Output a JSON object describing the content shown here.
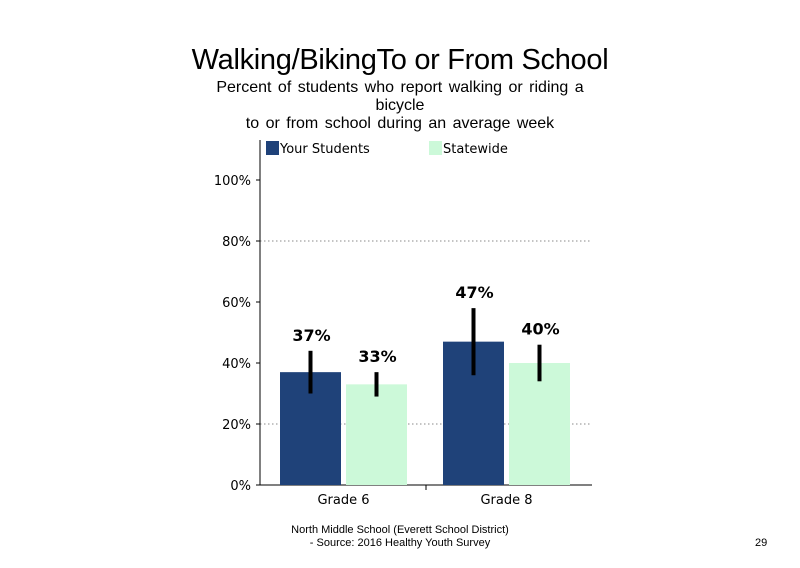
{
  "slide": {
    "title": "Walking/BikingTo or From School",
    "subtitle_lines": [
      "Percent of students who report walking or riding a",
      "bicycle",
      "to or from school during an average week"
    ],
    "footer_lines": [
      "North Middle School (Everett School District)",
      "- Source: 2016 Healthy Youth Survey"
    ],
    "page_number": "29"
  },
  "chart_data": {
    "type": "bar",
    "categories": [
      "Grade 6",
      "Grade 8"
    ],
    "series": [
      {
        "name": "Your Students",
        "values": [
          37,
          47
        ],
        "labels": [
          "37%",
          "47%"
        ],
        "error_low": [
          30,
          36
        ],
        "error_high": [
          44,
          58
        ],
        "color": "#1f4279"
      },
      {
        "name": "Statewide",
        "values": [
          33,
          40
        ],
        "labels": [
          "33%",
          "40%"
        ],
        "error_low": [
          29,
          34
        ],
        "error_high": [
          37,
          46
        ],
        "color": "#ccf9d9"
      }
    ],
    "y_ticks": [
      0,
      20,
      40,
      60,
      80,
      100
    ],
    "y_tick_labels": [
      "0%",
      "20%",
      "40%",
      "60%",
      "80%",
      "100%"
    ],
    "ylim": [
      0,
      100
    ],
    "grid": "dotted horizontal at 20% and 80%",
    "legend_position": "top",
    "xlabel": "",
    "ylabel": ""
  }
}
